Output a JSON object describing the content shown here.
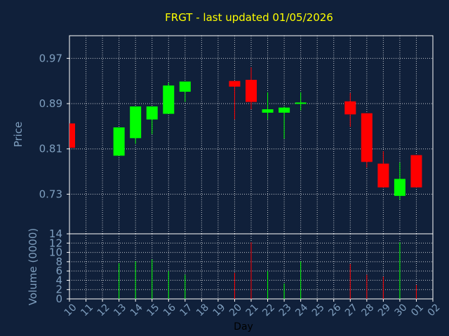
{
  "chart_data": [
    {
      "type": "candlestick",
      "title": "FRGT - last updated 01/05/2026",
      "ylabel": "Price",
      "ylim": [
        0.66,
        1.01
      ],
      "y_ticks": [
        "0.97",
        "0.89",
        "0.81",
        "0.73"
      ],
      "grid": true,
      "colors": {
        "up": "#00ff00",
        "down": "#ff0000",
        "title": "#ffff00",
        "axis_text": "#7f9fbf",
        "background": "#10203a",
        "grid": "#ffffff"
      },
      "candles": [
        {
          "day": "10",
          "open": 0.855,
          "high": 0.855,
          "low": 0.812,
          "close": 0.812
        },
        {
          "day": "13",
          "open": 0.798,
          "high": 0.848,
          "low": 0.798,
          "close": 0.848
        },
        {
          "day": "14",
          "open": 0.829,
          "high": 0.885,
          "low": 0.819,
          "close": 0.885
        },
        {
          "day": "15",
          "open": 0.862,
          "high": 0.885,
          "low": 0.836,
          "close": 0.885
        },
        {
          "day": "16",
          "open": 0.872,
          "high": 0.927,
          "low": 0.872,
          "close": 0.922
        },
        {
          "day": "17",
          "open": 0.911,
          "high": 0.929,
          "low": 0.893,
          "close": 0.929
        },
        {
          "day": "20",
          "open": 0.93,
          "high": 0.93,
          "low": 0.862,
          "close": 0.92
        },
        {
          "day": "21",
          "open": 0.932,
          "high": 0.954,
          "low": 0.88,
          "close": 0.893
        },
        {
          "day": "22",
          "open": 0.874,
          "high": 0.91,
          "low": 0.862,
          "close": 0.88
        },
        {
          "day": "23",
          "open": 0.874,
          "high": 0.885,
          "low": 0.828,
          "close": 0.883
        },
        {
          "day": "24",
          "open": 0.892,
          "high": 0.91,
          "low": 0.878,
          "close": 0.892
        },
        {
          "day": "27",
          "open": 0.894,
          "high": 0.909,
          "low": 0.849,
          "close": 0.871
        },
        {
          "day": "28",
          "open": 0.873,
          "high": 0.873,
          "low": 0.777,
          "close": 0.787
        },
        {
          "day": "29",
          "open": 0.784,
          "high": 0.806,
          "low": 0.742,
          "close": 0.742
        },
        {
          "day": "30",
          "open": 0.727,
          "high": 0.786,
          "low": 0.72,
          "close": 0.757
        },
        {
          "day": "01",
          "open": 0.799,
          "high": 0.799,
          "low": 0.742,
          "close": 0.742
        }
      ]
    },
    {
      "type": "bar",
      "ylabel": "Volume (0000)",
      "xlabel": "Day",
      "ylim": [
        0,
        14
      ],
      "y_ticks": [
        "14",
        "12",
        "10",
        "8",
        "6",
        "4",
        "2",
        "0"
      ],
      "x_ticks": [
        "10",
        "11",
        "12",
        "13",
        "14",
        "15",
        "16",
        "17",
        "18",
        "19",
        "20",
        "21",
        "22",
        "23",
        "24",
        "25",
        "26",
        "27",
        "28",
        "29",
        "30",
        "01",
        "02"
      ],
      "bars": [
        {
          "day": "13",
          "value": 7.7,
          "color": "#00ff00"
        },
        {
          "day": "14",
          "value": 8.1,
          "color": "#00ff00"
        },
        {
          "day": "15",
          "value": 8.5,
          "color": "#00ff00"
        },
        {
          "day": "16",
          "value": 6.0,
          "color": "#00ff00"
        },
        {
          "day": "17",
          "value": 5.2,
          "color": "#00ff00"
        },
        {
          "day": "20",
          "value": 5.6,
          "color": "#ff0000"
        },
        {
          "day": "21",
          "value": 12.2,
          "color": "#ff0000"
        },
        {
          "day": "22",
          "value": 6.0,
          "color": "#00ff00"
        },
        {
          "day": "23",
          "value": 3.3,
          "color": "#00ff00"
        },
        {
          "day": "24",
          "value": 8.1,
          "color": "#00ff00"
        },
        {
          "day": "27",
          "value": 7.5,
          "color": "#ff0000"
        },
        {
          "day": "28",
          "value": 5.2,
          "color": "#ff0000"
        },
        {
          "day": "29",
          "value": 4.8,
          "color": "#ff0000"
        },
        {
          "day": "30",
          "value": 12.2,
          "color": "#00ff00"
        },
        {
          "day": "01",
          "value": 3.0,
          "color": "#ff0000"
        }
      ]
    }
  ]
}
